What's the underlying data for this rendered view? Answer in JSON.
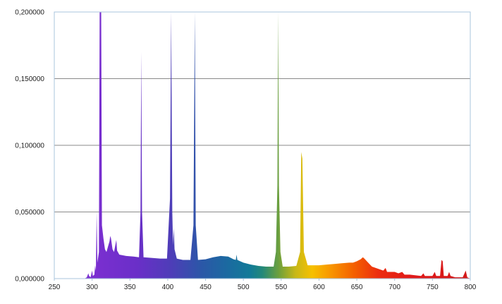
{
  "chart_data": {
    "type": "area",
    "title": "",
    "xlabel": "",
    "ylabel": "",
    "xlim": [
      250,
      800
    ],
    "ylim": [
      0,
      0.2
    ],
    "grid": true,
    "legend": "none",
    "x_ticks": [
      250,
      300,
      350,
      400,
      450,
      500,
      550,
      600,
      650,
      700,
      750,
      800
    ],
    "x_tick_labels": [
      "250",
      "300",
      "350",
      "400",
      "450",
      "500",
      "550",
      "600",
      "650",
      "700",
      "750",
      "800"
    ],
    "y_ticks": [
      0,
      0.05,
      0.1,
      0.15,
      0.2
    ],
    "y_tick_labels": [
      "0,000000",
      "0,050000",
      "0,100000",
      "0,150000",
      "0,200000"
    ],
    "fill_gradient": "wavelength spectrum (violet to red)",
    "series": [
      {
        "values": [
          [
            250,
            0.0
          ],
          [
            290,
            0.0
          ],
          [
            293,
            0.001
          ],
          [
            295,
            0.004
          ],
          [
            296,
            0.002
          ],
          [
            298,
            0.001
          ],
          [
            300,
            0.006
          ],
          [
            301,
            0.002
          ],
          [
            303,
            0.003
          ],
          [
            304,
            0.01
          ],
          [
            305,
            0.006
          ],
          [
            306,
            0.05
          ],
          [
            307,
            0.012
          ],
          [
            309,
            0.02
          ],
          [
            310,
            0.2
          ],
          [
            312,
            0.2
          ],
          [
            313,
            0.04
          ],
          [
            315,
            0.03
          ],
          [
            317,
            0.022
          ],
          [
            319,
            0.02
          ],
          [
            321,
            0.024
          ],
          [
            323,
            0.028
          ],
          [
            324,
            0.032
          ],
          [
            325,
            0.03
          ],
          [
            327,
            0.022
          ],
          [
            329,
            0.02
          ],
          [
            331,
            0.026
          ],
          [
            332,
            0.029
          ],
          [
            333,
            0.021
          ],
          [
            336,
            0.018
          ],
          [
            345,
            0.017
          ],
          [
            355,
            0.0165
          ],
          [
            362,
            0.016
          ],
          [
            364,
            0.05
          ],
          [
            365,
            0.17
          ],
          [
            366,
            0.05
          ],
          [
            368,
            0.016
          ],
          [
            380,
            0.0155
          ],
          [
            390,
            0.015
          ],
          [
            399,
            0.015
          ],
          [
            403,
            0.06
          ],
          [
            404.5,
            0.2
          ],
          [
            406,
            0.05
          ],
          [
            407,
            0.025
          ],
          [
            408,
            0.038
          ],
          [
            409,
            0.022
          ],
          [
            412,
            0.015
          ],
          [
            420,
            0.014
          ],
          [
            430,
            0.014
          ],
          [
            434,
            0.04
          ],
          [
            435.8,
            0.2
          ],
          [
            437,
            0.04
          ],
          [
            440,
            0.014
          ],
          [
            450,
            0.0145
          ],
          [
            460,
            0.016
          ],
          [
            470,
            0.017
          ],
          [
            480,
            0.0165
          ],
          [
            487,
            0.0145
          ],
          [
            490,
            0.014
          ],
          [
            491,
            0.018
          ],
          [
            492,
            0.014
          ],
          [
            500,
            0.012
          ],
          [
            510,
            0.0105
          ],
          [
            520,
            0.0095
          ],
          [
            530,
            0.009
          ],
          [
            540,
            0.009
          ],
          [
            543,
            0.02
          ],
          [
            545,
            0.07
          ],
          [
            546,
            0.2
          ],
          [
            547,
            0.07
          ],
          [
            549,
            0.02
          ],
          [
            552,
            0.009
          ],
          [
            560,
            0.009
          ],
          [
            570,
            0.0095
          ],
          [
            575,
            0.02
          ],
          [
            576.5,
            0.095
          ],
          [
            578,
            0.09
          ],
          [
            580,
            0.02
          ],
          [
            585,
            0.01
          ],
          [
            600,
            0.01
          ],
          [
            610,
            0.0105
          ],
          [
            620,
            0.011
          ],
          [
            630,
            0.0115
          ],
          [
            640,
            0.012
          ],
          [
            645,
            0.012
          ],
          [
            650,
            0.013
          ],
          [
            655,
            0.0145
          ],
          [
            658,
            0.016
          ],
          [
            660,
            0.015
          ],
          [
            665,
            0.012
          ],
          [
            670,
            0.009
          ],
          [
            680,
            0.007
          ],
          [
            685,
            0.006
          ],
          [
            688,
            0.008
          ],
          [
            690,
            0.005
          ],
          [
            700,
            0.005
          ],
          [
            705,
            0.004
          ],
          [
            710,
            0.005
          ],
          [
            713,
            0.003
          ],
          [
            720,
            0.003
          ],
          [
            735,
            0.002
          ],
          [
            738,
            0.004
          ],
          [
            740,
            0.002
          ],
          [
            750,
            0.002
          ],
          [
            753,
            0.005
          ],
          [
            755,
            0.002
          ],
          [
            760,
            0.002
          ],
          [
            762,
            0.014
          ],
          [
            763.5,
            0.013
          ],
          [
            765,
            0.002
          ],
          [
            770,
            0.002
          ],
          [
            772,
            0.005
          ],
          [
            774,
            0.002
          ],
          [
            780,
            0.001
          ],
          [
            790,
            0.001
          ],
          [
            794,
            0.006
          ],
          [
            796,
            0.001
          ],
          [
            800,
            0.0
          ]
        ]
      }
    ]
  }
}
